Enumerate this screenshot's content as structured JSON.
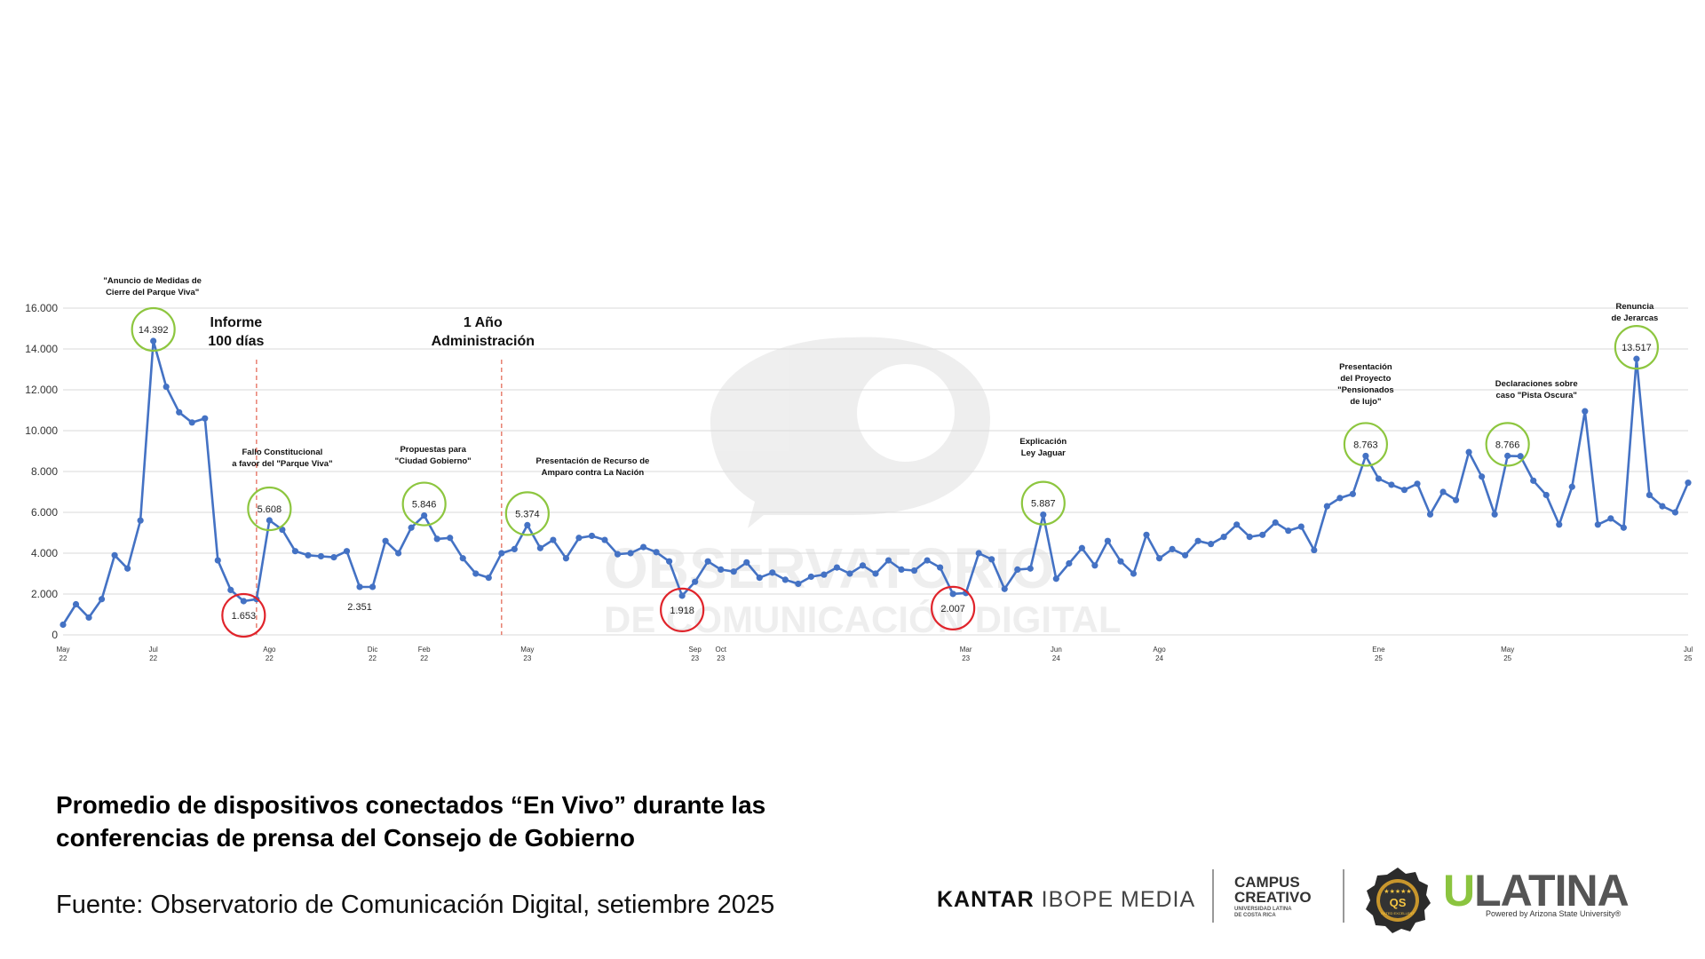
{
  "chart_data": {
    "type": "line",
    "ylim": [
      0,
      16000
    ],
    "y_ticks": [
      "0",
      "2.000",
      "4.000",
      "6.000",
      "8.000",
      "10.000",
      "12.000",
      "14.000",
      "16.000"
    ],
    "x_tick_labels": [
      {
        "month": "May",
        "year": "22"
      },
      {
        "month": "Jul",
        "year": "22"
      },
      {
        "month": "Ago",
        "year": "22"
      },
      {
        "month": "Dic",
        "year": "22"
      },
      {
        "month": "Feb",
        "year": "22"
      },
      {
        "month": "May",
        "year": "23"
      },
      {
        "month": "Sep",
        "year": "23"
      },
      {
        "month": "Oct",
        "year": "23"
      },
      {
        "month": "Mar",
        "year": "23"
      },
      {
        "month": "Jun",
        "year": "24"
      },
      {
        "month": "Ago",
        "year": "24"
      },
      {
        "month": "Ene",
        "year": "25"
      },
      {
        "month": "May",
        "year": "25"
      },
      {
        "month": "Jul",
        "year": "25"
      }
    ],
    "series": [
      {
        "color": "#4472c4",
        "values": [
          500,
          1500,
          850,
          1750,
          3900,
          3250,
          5600,
          14392,
          12150,
          10900,
          10400,
          10600,
          3650,
          2200,
          1653,
          1750,
          5608,
          5150,
          4100,
          3900,
          3850,
          3800,
          4100,
          2351,
          2350,
          4600,
          4000,
          5250,
          5846,
          4700,
          4750,
          3750,
          3000,
          2800,
          4000,
          4200,
          5374,
          4250,
          4650,
          3750,
          4750,
          4850,
          4650,
          3950,
          4000,
          4300,
          4050,
          3600,
          1918,
          2600,
          3600,
          3200,
          3100,
          3550,
          2800,
          3050,
          2700,
          2500,
          2850,
          2950,
          3300,
          3000,
          3400,
          3000,
          3650,
          3200,
          3150,
          3650,
          3300,
          2007,
          2050,
          4000,
          3700,
          2250,
          3200,
          3250,
          5887,
          2750,
          3500,
          4250,
          3400,
          4600,
          3600,
          3000,
          4900,
          3750,
          4200,
          3900,
          4600,
          4450,
          4800,
          5400,
          4800,
          4900,
          5500,
          5100,
          5300,
          4150,
          6300,
          6700,
          6900,
          8763,
          7650,
          7350,
          7100,
          7400,
          5900,
          7000,
          6600,
          8950,
          7750,
          5900,
          8766,
          8750,
          7550,
          6850,
          5400,
          7250,
          10950,
          5400,
          5700,
          5250,
          13517,
          6850,
          6300,
          6000,
          7450
        ]
      }
    ],
    "events": [
      {
        "label": [
          "Informe",
          "100 días"
        ]
      },
      {
        "label": [
          "1 Año",
          "Administración"
        ]
      }
    ],
    "annotations": [
      {
        "text": [
          "\"Anuncio de Medidas de",
          "Cierre del Parque Viva\""
        ]
      },
      {
        "text": [
          "Fallo Constitucional",
          "a favor del \"Parque Viva\""
        ]
      },
      {
        "text": [
          "Propuestas  para",
          "\"Ciudad Gobierno\""
        ]
      },
      {
        "text": [
          "Presentación de Recurso de",
          "Amparo contra La Nación"
        ]
      },
      {
        "text": [
          "Explicación",
          "Ley Jaguar"
        ]
      },
      {
        "text": [
          "Presentación",
          "del Proyecto",
          "\"Pensionados",
          "de lujo\""
        ]
      },
      {
        "text": [
          "Declaraciones sobre",
          "caso \"Pista Oscura\""
        ]
      },
      {
        "text": [
          "Renuncia",
          "de Jerarcas"
        ]
      }
    ],
    "highlights": [
      {
        "text": "14.392",
        "kind": "high"
      },
      {
        "text": "1.653",
        "kind": "low"
      },
      {
        "text": "5.608",
        "kind": "high"
      },
      {
        "text": "2.351",
        "kind": "plain"
      },
      {
        "text": "5.846",
        "kind": "high"
      },
      {
        "text": "5.374",
        "kind": "high"
      },
      {
        "text": "1.918",
        "kind": "low"
      },
      {
        "text": "2.007",
        "kind": "low"
      },
      {
        "text": "5.887",
        "kind": "high"
      },
      {
        "text": "8.763",
        "kind": "high"
      },
      {
        "text": "8.766",
        "kind": "high"
      },
      {
        "text": "13.517",
        "kind": "high"
      }
    ],
    "colors": {
      "line": "#4472c4",
      "high": "#8dc63f",
      "low": "#e0242b",
      "event": "#e46c5a",
      "grid": "#d9d9d9"
    },
    "watermark": [
      "OBSERVATORIO",
      "DE COMUNICACIÓN DIGITAL"
    ]
  },
  "caption": {
    "title_line1": "Promedio de dispositivos conectados “En Vivo” durante las",
    "title_line2": "conferencias de prensa del Consejo de Gobierno",
    "source": "Fuente: Observatorio de Comunicación Digital, setiembre 2025"
  },
  "logos": {
    "kantar_bold": "KANTAR",
    "kantar_light": "IBOPE MEDIA",
    "campus_line1": "CAMPUS",
    "campus_line2": "CREATIVO",
    "campus_sub1": "UNIVERSIDAD LATINA",
    "campus_sub2": "DE COSTA RICA",
    "badge_text": "QS",
    "badge_sub": "RATED EXCELLENT",
    "ulatina_u": "U",
    "ulatina_rest": "LATINA",
    "ulatina_sub": "Powered by Arizona State University®"
  }
}
